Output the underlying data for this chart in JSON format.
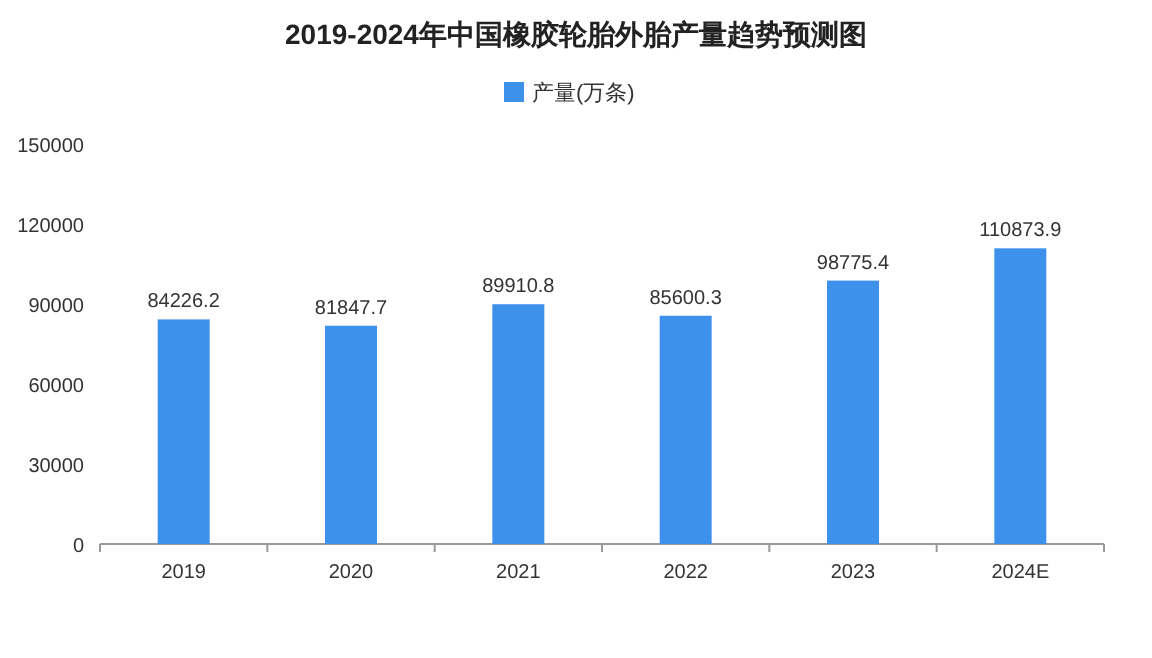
{
  "chart_data": {
    "type": "bar",
    "title": "2019-2024年中国橡胶轮胎外胎产量趋势预测图",
    "categories": [
      "2019",
      "2020",
      "2021",
      "2022",
      "2023",
      "2024E"
    ],
    "series": [
      {
        "name": "产量(万条)",
        "color": "#3d91ea",
        "values": [
          84226.2,
          81847.7,
          89910.8,
          85600.3,
          98775.4,
          110873.9
        ]
      }
    ],
    "ylim": [
      0,
      150000
    ],
    "yticks": [
      0,
      30000,
      60000,
      90000,
      120000,
      150000
    ],
    "data_labels": true,
    "legend": "top",
    "grid": false
  }
}
